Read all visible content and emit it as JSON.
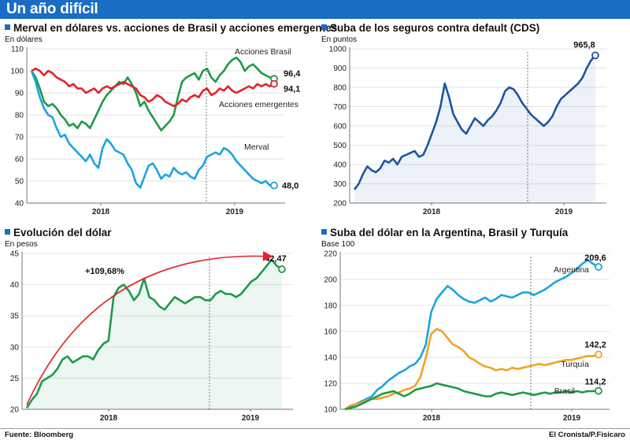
{
  "header": {
    "title": "Un año difícil"
  },
  "footer": {
    "source": "Fuente: Bloomberg",
    "credit": "El Cronista/P.Fisicaro"
  },
  "colors": {
    "accent": "#1a6cc4",
    "red": "#e4222a",
    "green": "#1e9a47",
    "cyan": "#1aa4de",
    "navy": "#1c55a4",
    "orange": "#f2a324"
  },
  "chart_data": [
    {
      "type": "line",
      "title": "Merval en dólares vs. acciones de Brasil y acciones emergentes",
      "ylabel": "En dólares",
      "ylim": [
        40,
        110
      ],
      "yticks": [
        "40",
        "50",
        "60",
        "70",
        "80",
        "90",
        "100",
        "110"
      ],
      "xticks": [
        "2018",
        "2019"
      ],
      "series": [
        {
          "name": "Acciones Brasil",
          "color": "#1e9a47",
          "values": [
            100,
            97,
            92,
            86,
            84,
            85,
            83,
            80,
            78,
            75,
            76,
            74,
            77,
            76,
            74,
            78,
            82,
            86,
            89,
            91,
            93,
            95,
            94,
            97,
            94,
            90,
            84,
            86,
            82,
            79,
            76,
            73,
            75,
            77,
            80,
            88,
            95,
            97,
            98,
            99,
            96,
            100,
            101,
            97,
            95,
            98,
            100,
            103,
            105,
            106,
            104,
            100,
            102,
            103,
            101,
            99,
            98,
            97,
            96.4
          ],
          "end_label": "96,4"
        },
        {
          "name": "Acciones emergentes",
          "color": "#e4222a",
          "values": [
            100,
            101,
            100,
            98,
            100,
            99,
            97,
            96,
            95,
            93,
            94,
            92,
            92,
            90,
            91,
            92,
            90,
            92,
            93,
            92,
            93,
            94,
            95,
            94,
            93,
            92,
            89,
            88,
            86,
            87,
            89,
            88,
            86,
            85,
            84,
            85,
            87,
            86,
            88,
            89,
            88,
            91,
            92,
            89,
            90,
            92,
            91,
            93,
            91,
            90,
            91,
            92,
            93,
            92,
            94,
            93,
            94,
            93,
            94.1
          ],
          "end_label": "94,1"
        },
        {
          "name": "Merval",
          "color": "#1aa4de",
          "values": [
            100,
            95,
            88,
            83,
            80,
            79,
            74,
            70,
            71,
            67,
            65,
            63,
            61,
            59,
            62,
            58,
            56,
            65,
            69,
            67,
            64,
            63,
            62,
            58,
            55,
            49,
            47,
            52,
            57,
            58,
            55,
            51,
            53,
            52,
            56,
            54,
            53,
            54,
            52,
            51,
            55,
            57,
            61,
            62,
            63,
            62,
            65,
            64,
            62,
            59,
            57,
            55,
            53,
            51,
            50,
            49,
            50,
            48,
            48.0
          ],
          "end_label": "48,0"
        }
      ]
    },
    {
      "type": "line",
      "title": "Suba de los seguros contra default (CDS)",
      "ylabel": "En puntos",
      "ylim": [
        200,
        1000
      ],
      "yticks": [
        "200",
        "300",
        "400",
        "500",
        "600",
        "700",
        "800",
        "900",
        "1000"
      ],
      "xticks": [
        "2018",
        "2019"
      ],
      "series": [
        {
          "name": "CDS",
          "color": "#1c55a4",
          "values": [
            270,
            300,
            350,
            390,
            370,
            360,
            380,
            420,
            410,
            430,
            400,
            440,
            450,
            460,
            470,
            440,
            450,
            500,
            560,
            620,
            700,
            820,
            750,
            660,
            620,
            580,
            560,
            600,
            640,
            620,
            600,
            630,
            650,
            680,
            720,
            780,
            800,
            790,
            760,
            720,
            690,
            660,
            640,
            620,
            600,
            620,
            650,
            700,
            740,
            760,
            780,
            800,
            820,
            850,
            900,
            940,
            965.8
          ],
          "end_label": "965,8"
        }
      ]
    },
    {
      "type": "line",
      "title": "Evolución del dólar",
      "ylabel": "En pesos",
      "ylim": [
        20,
        45
      ],
      "yticks": [
        "20",
        "25",
        "30",
        "35",
        "40",
        "45"
      ],
      "xticks": [
        "2018",
        "2019"
      ],
      "annotation": "+109,68%",
      "series": [
        {
          "name": "Dólar",
          "color": "#1e9a47",
          "values": [
            20.2,
            21.5,
            22.5,
            24.5,
            25.0,
            25.5,
            26.5,
            28.0,
            28.5,
            27.5,
            28.0,
            28.5,
            28.5,
            28.0,
            29.5,
            30.5,
            31.0,
            38.0,
            39.5,
            40.0,
            39.0,
            37.5,
            38.5,
            41.0,
            38.0,
            37.5,
            36.5,
            36.0,
            37.0,
            38.0,
            37.5,
            37.0,
            37.5,
            38.0,
            38.0,
            37.5,
            37.5,
            38.5,
            39.0,
            38.5,
            38.5,
            38.0,
            38.5,
            39.5,
            40.5,
            41.0,
            42.0,
            43.0,
            44.0,
            43.0,
            42.47
          ],
          "end_label": "42,47"
        }
      ]
    },
    {
      "type": "line",
      "title": "Suba del dólar en la Argentina, Brasil y Turquía",
      "ylabel": "Base 100",
      "ylim": [
        100,
        220
      ],
      "yticks": [
        "100",
        "120",
        "140",
        "160",
        "180",
        "200",
        "220"
      ],
      "xticks": [
        "2018",
        "2019"
      ],
      "series": [
        {
          "name": "Argentina",
          "color": "#1aa4de",
          "values": [
            100,
            102,
            104,
            106,
            108,
            110,
            115,
            118,
            122,
            125,
            128,
            130,
            133,
            135,
            140,
            150,
            175,
            185,
            190,
            195,
            192,
            188,
            185,
            183,
            182,
            184,
            186,
            183,
            185,
            188,
            187,
            186,
            188,
            190,
            190,
            188,
            190,
            192,
            195,
            198,
            200,
            202,
            205,
            208,
            212,
            215,
            212,
            209.6
          ],
          "end_label": "209,6"
        },
        {
          "name": "Turquía",
          "color": "#f2a324",
          "values": [
            100,
            103,
            104,
            105,
            107,
            108,
            108,
            109,
            110,
            112,
            113,
            115,
            116,
            118,
            125,
            140,
            158,
            162,
            160,
            155,
            150,
            148,
            145,
            140,
            138,
            135,
            133,
            132,
            130,
            131,
            130,
            132,
            131,
            132,
            133,
            134,
            135,
            134,
            135,
            136,
            137,
            138,
            138,
            139,
            140,
            141,
            141,
            142.2
          ],
          "end_label": "142,2"
        },
        {
          "name": "Brasil",
          "color": "#1e9a47",
          "values": [
            100,
            101,
            102,
            104,
            106,
            108,
            110,
            112,
            113,
            114,
            112,
            110,
            112,
            115,
            116,
            117,
            118,
            120,
            119,
            118,
            117,
            116,
            114,
            113,
            112,
            111,
            110,
            110,
            112,
            113,
            112,
            111,
            112,
            113,
            112,
            111,
            112,
            113,
            112,
            113,
            113,
            114,
            113,
            114,
            113,
            114,
            114,
            114.2
          ],
          "end_label": "114,2"
        }
      ]
    }
  ]
}
